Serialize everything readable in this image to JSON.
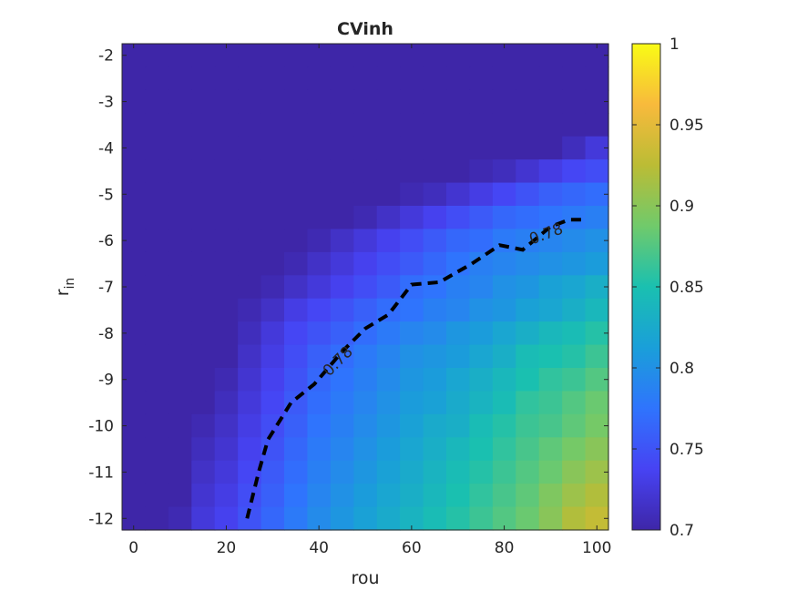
{
  "chart_data": {
    "type": "heatmap",
    "title": "CVinh",
    "xlabel": "rou",
    "ylabel": "r",
    "ylabel_subscript": "in",
    "x_ticks": [
      0,
      20,
      40,
      60,
      80,
      100
    ],
    "y_ticks": [
      -2,
      -3,
      -4,
      -5,
      -6,
      -7,
      -8,
      -9,
      -10,
      -11,
      -12
    ],
    "x_centers": [
      0,
      5,
      10,
      15,
      20,
      25,
      30,
      35,
      40,
      45,
      50,
      55,
      60,
      65,
      70,
      75,
      80,
      85,
      90,
      95,
      100
    ],
    "y_centers": [
      -2.0,
      -2.5,
      -3.0,
      -3.5,
      -4.0,
      -4.5,
      -5.0,
      -5.5,
      -6.0,
      -6.5,
      -7.0,
      -7.5,
      -8.0,
      -8.5,
      -9.0,
      -9.5,
      -10.0,
      -10.5,
      -11.0,
      -11.5,
      -12.0
    ],
    "xlim": [
      -2.5,
      102.5
    ],
    "ylim": [
      -12.25,
      -1.75
    ],
    "colorbar": {
      "min": 0.7,
      "max": 1.0,
      "ticks": [
        "0.7",
        "0.75",
        "0.8",
        "0.85",
        "0.9",
        "0.95",
        "1"
      ],
      "colormap": [
        "#3e26a8",
        "#4743f3",
        "#2f74fd",
        "#1a9fd9",
        "#1ac0b0",
        "#70ca6b",
        "#bbbc35",
        "#f8ba3c",
        "#f9fb15"
      ]
    },
    "values": [
      [
        0.7,
        0.7,
        0.7,
        0.7,
        0.7,
        0.7,
        0.7,
        0.7,
        0.7,
        0.7,
        0.7,
        0.7,
        0.7,
        0.7,
        0.7,
        0.7,
        0.7,
        0.7,
        0.7,
        0.7,
        0.7
      ],
      [
        0.7,
        0.7,
        0.7,
        0.7,
        0.7,
        0.7,
        0.7,
        0.7,
        0.7,
        0.7,
        0.7,
        0.7,
        0.7,
        0.7,
        0.7,
        0.7,
        0.7,
        0.7,
        0.7,
        0.7,
        0.7
      ],
      [
        0.7,
        0.7,
        0.7,
        0.7,
        0.7,
        0.7,
        0.7,
        0.7,
        0.7,
        0.7,
        0.7,
        0.7,
        0.7,
        0.7,
        0.7,
        0.7,
        0.7,
        0.7,
        0.7,
        0.7,
        0.7
      ],
      [
        0.7,
        0.7,
        0.7,
        0.7,
        0.7,
        0.7,
        0.7,
        0.7,
        0.7,
        0.7,
        0.7,
        0.7,
        0.7,
        0.7,
        0.7,
        0.7,
        0.7,
        0.7,
        0.7,
        0.7,
        0.7
      ],
      [
        0.7,
        0.7,
        0.7,
        0.7,
        0.7,
        0.7,
        0.7,
        0.7,
        0.7,
        0.7,
        0.7,
        0.7,
        0.7,
        0.7,
        0.7,
        0.7,
        0.7,
        0.7,
        0.7,
        0.71,
        0.725
      ],
      [
        0.7,
        0.7,
        0.7,
        0.7,
        0.7,
        0.7,
        0.7,
        0.7,
        0.7,
        0.7,
        0.7,
        0.7,
        0.7,
        0.7,
        0.7,
        0.705,
        0.71,
        0.72,
        0.73,
        0.74,
        0.745
      ],
      [
        0.7,
        0.7,
        0.7,
        0.7,
        0.7,
        0.7,
        0.7,
        0.7,
        0.7,
        0.7,
        0.7,
        0.7,
        0.705,
        0.71,
        0.72,
        0.73,
        0.74,
        0.75,
        0.76,
        0.765,
        0.77
      ],
      [
        0.7,
        0.7,
        0.7,
        0.7,
        0.7,
        0.7,
        0.7,
        0.7,
        0.7,
        0.7,
        0.705,
        0.715,
        0.725,
        0.735,
        0.745,
        0.755,
        0.765,
        0.77,
        0.775,
        0.78,
        0.785
      ],
      [
        0.7,
        0.7,
        0.7,
        0.7,
        0.7,
        0.7,
        0.7,
        0.7,
        0.705,
        0.715,
        0.725,
        0.735,
        0.745,
        0.755,
        0.765,
        0.77,
        0.78,
        0.785,
        0.79,
        0.795,
        0.8
      ],
      [
        0.7,
        0.7,
        0.7,
        0.7,
        0.7,
        0.7,
        0.7,
        0.705,
        0.715,
        0.725,
        0.735,
        0.745,
        0.755,
        0.765,
        0.775,
        0.785,
        0.79,
        0.795,
        0.8,
        0.805,
        0.81
      ],
      [
        0.7,
        0.7,
        0.7,
        0.7,
        0.7,
        0.7,
        0.705,
        0.715,
        0.725,
        0.735,
        0.745,
        0.755,
        0.77,
        0.775,
        0.785,
        0.79,
        0.8,
        0.805,
        0.815,
        0.82,
        0.83
      ],
      [
        0.7,
        0.7,
        0.7,
        0.7,
        0.7,
        0.705,
        0.715,
        0.73,
        0.74,
        0.75,
        0.76,
        0.77,
        0.775,
        0.785,
        0.79,
        0.8,
        0.805,
        0.815,
        0.82,
        0.83,
        0.84
      ],
      [
        0.7,
        0.7,
        0.7,
        0.7,
        0.7,
        0.71,
        0.725,
        0.74,
        0.75,
        0.76,
        0.77,
        0.78,
        0.79,
        0.795,
        0.805,
        0.81,
        0.82,
        0.83,
        0.84,
        0.845,
        0.855
      ],
      [
        0.7,
        0.7,
        0.7,
        0.7,
        0.7,
        0.715,
        0.73,
        0.745,
        0.76,
        0.77,
        0.78,
        0.79,
        0.8,
        0.805,
        0.81,
        0.82,
        0.83,
        0.845,
        0.85,
        0.855,
        0.865
      ],
      [
        0.7,
        0.7,
        0.7,
        0.7,
        0.705,
        0.72,
        0.735,
        0.75,
        0.765,
        0.775,
        0.785,
        0.795,
        0.805,
        0.81,
        0.82,
        0.83,
        0.84,
        0.85,
        0.86,
        0.865,
        0.875
      ],
      [
        0.7,
        0.7,
        0.7,
        0.7,
        0.71,
        0.725,
        0.74,
        0.755,
        0.77,
        0.78,
        0.79,
        0.8,
        0.81,
        0.815,
        0.825,
        0.835,
        0.845,
        0.86,
        0.865,
        0.875,
        0.885
      ],
      [
        0.7,
        0.7,
        0.7,
        0.705,
        0.715,
        0.73,
        0.745,
        0.76,
        0.775,
        0.785,
        0.795,
        0.805,
        0.815,
        0.825,
        0.83,
        0.845,
        0.855,
        0.865,
        0.87,
        0.88,
        0.89
      ],
      [
        0.7,
        0.7,
        0.7,
        0.71,
        0.72,
        0.735,
        0.75,
        0.765,
        0.78,
        0.79,
        0.8,
        0.81,
        0.82,
        0.83,
        0.84,
        0.85,
        0.86,
        0.87,
        0.88,
        0.89,
        0.9
      ],
      [
        0.7,
        0.7,
        0.7,
        0.715,
        0.725,
        0.74,
        0.755,
        0.77,
        0.785,
        0.795,
        0.805,
        0.815,
        0.825,
        0.835,
        0.845,
        0.855,
        0.865,
        0.875,
        0.885,
        0.9,
        0.91
      ],
      [
        0.7,
        0.7,
        0.7,
        0.72,
        0.73,
        0.745,
        0.76,
        0.775,
        0.79,
        0.8,
        0.81,
        0.82,
        0.83,
        0.84,
        0.85,
        0.86,
        0.87,
        0.88,
        0.895,
        0.91,
        0.92
      ],
      [
        0.7,
        0.7,
        0.705,
        0.725,
        0.735,
        0.75,
        0.765,
        0.78,
        0.795,
        0.805,
        0.815,
        0.825,
        0.835,
        0.845,
        0.855,
        0.865,
        0.875,
        0.885,
        0.9,
        0.92,
        0.93
      ]
    ],
    "contour": {
      "level": "0.78",
      "style": "dashed",
      "points": [
        [
          24.5,
          -12
        ],
        [
          27,
          -11
        ],
        [
          29,
          -10.3
        ],
        [
          34,
          -9.5
        ],
        [
          39,
          -9.1
        ],
        [
          45,
          -8.4
        ],
        [
          50,
          -7.9
        ],
        [
          55,
          -7.6
        ],
        [
          60,
          -6.95
        ],
        [
          66,
          -6.9
        ],
        [
          73,
          -6.5
        ],
        [
          79,
          -6.1
        ],
        [
          84,
          -6.2
        ],
        [
          90,
          -5.7
        ],
        [
          94,
          -5.55
        ],
        [
          97,
          -5.55
        ]
      ],
      "labels": [
        {
          "text": "0.78",
          "x": 44,
          "y": -8.6,
          "angle": -45
        },
        {
          "text": "0.78",
          "x": 89,
          "y": -5.85,
          "angle": -20
        }
      ]
    }
  }
}
